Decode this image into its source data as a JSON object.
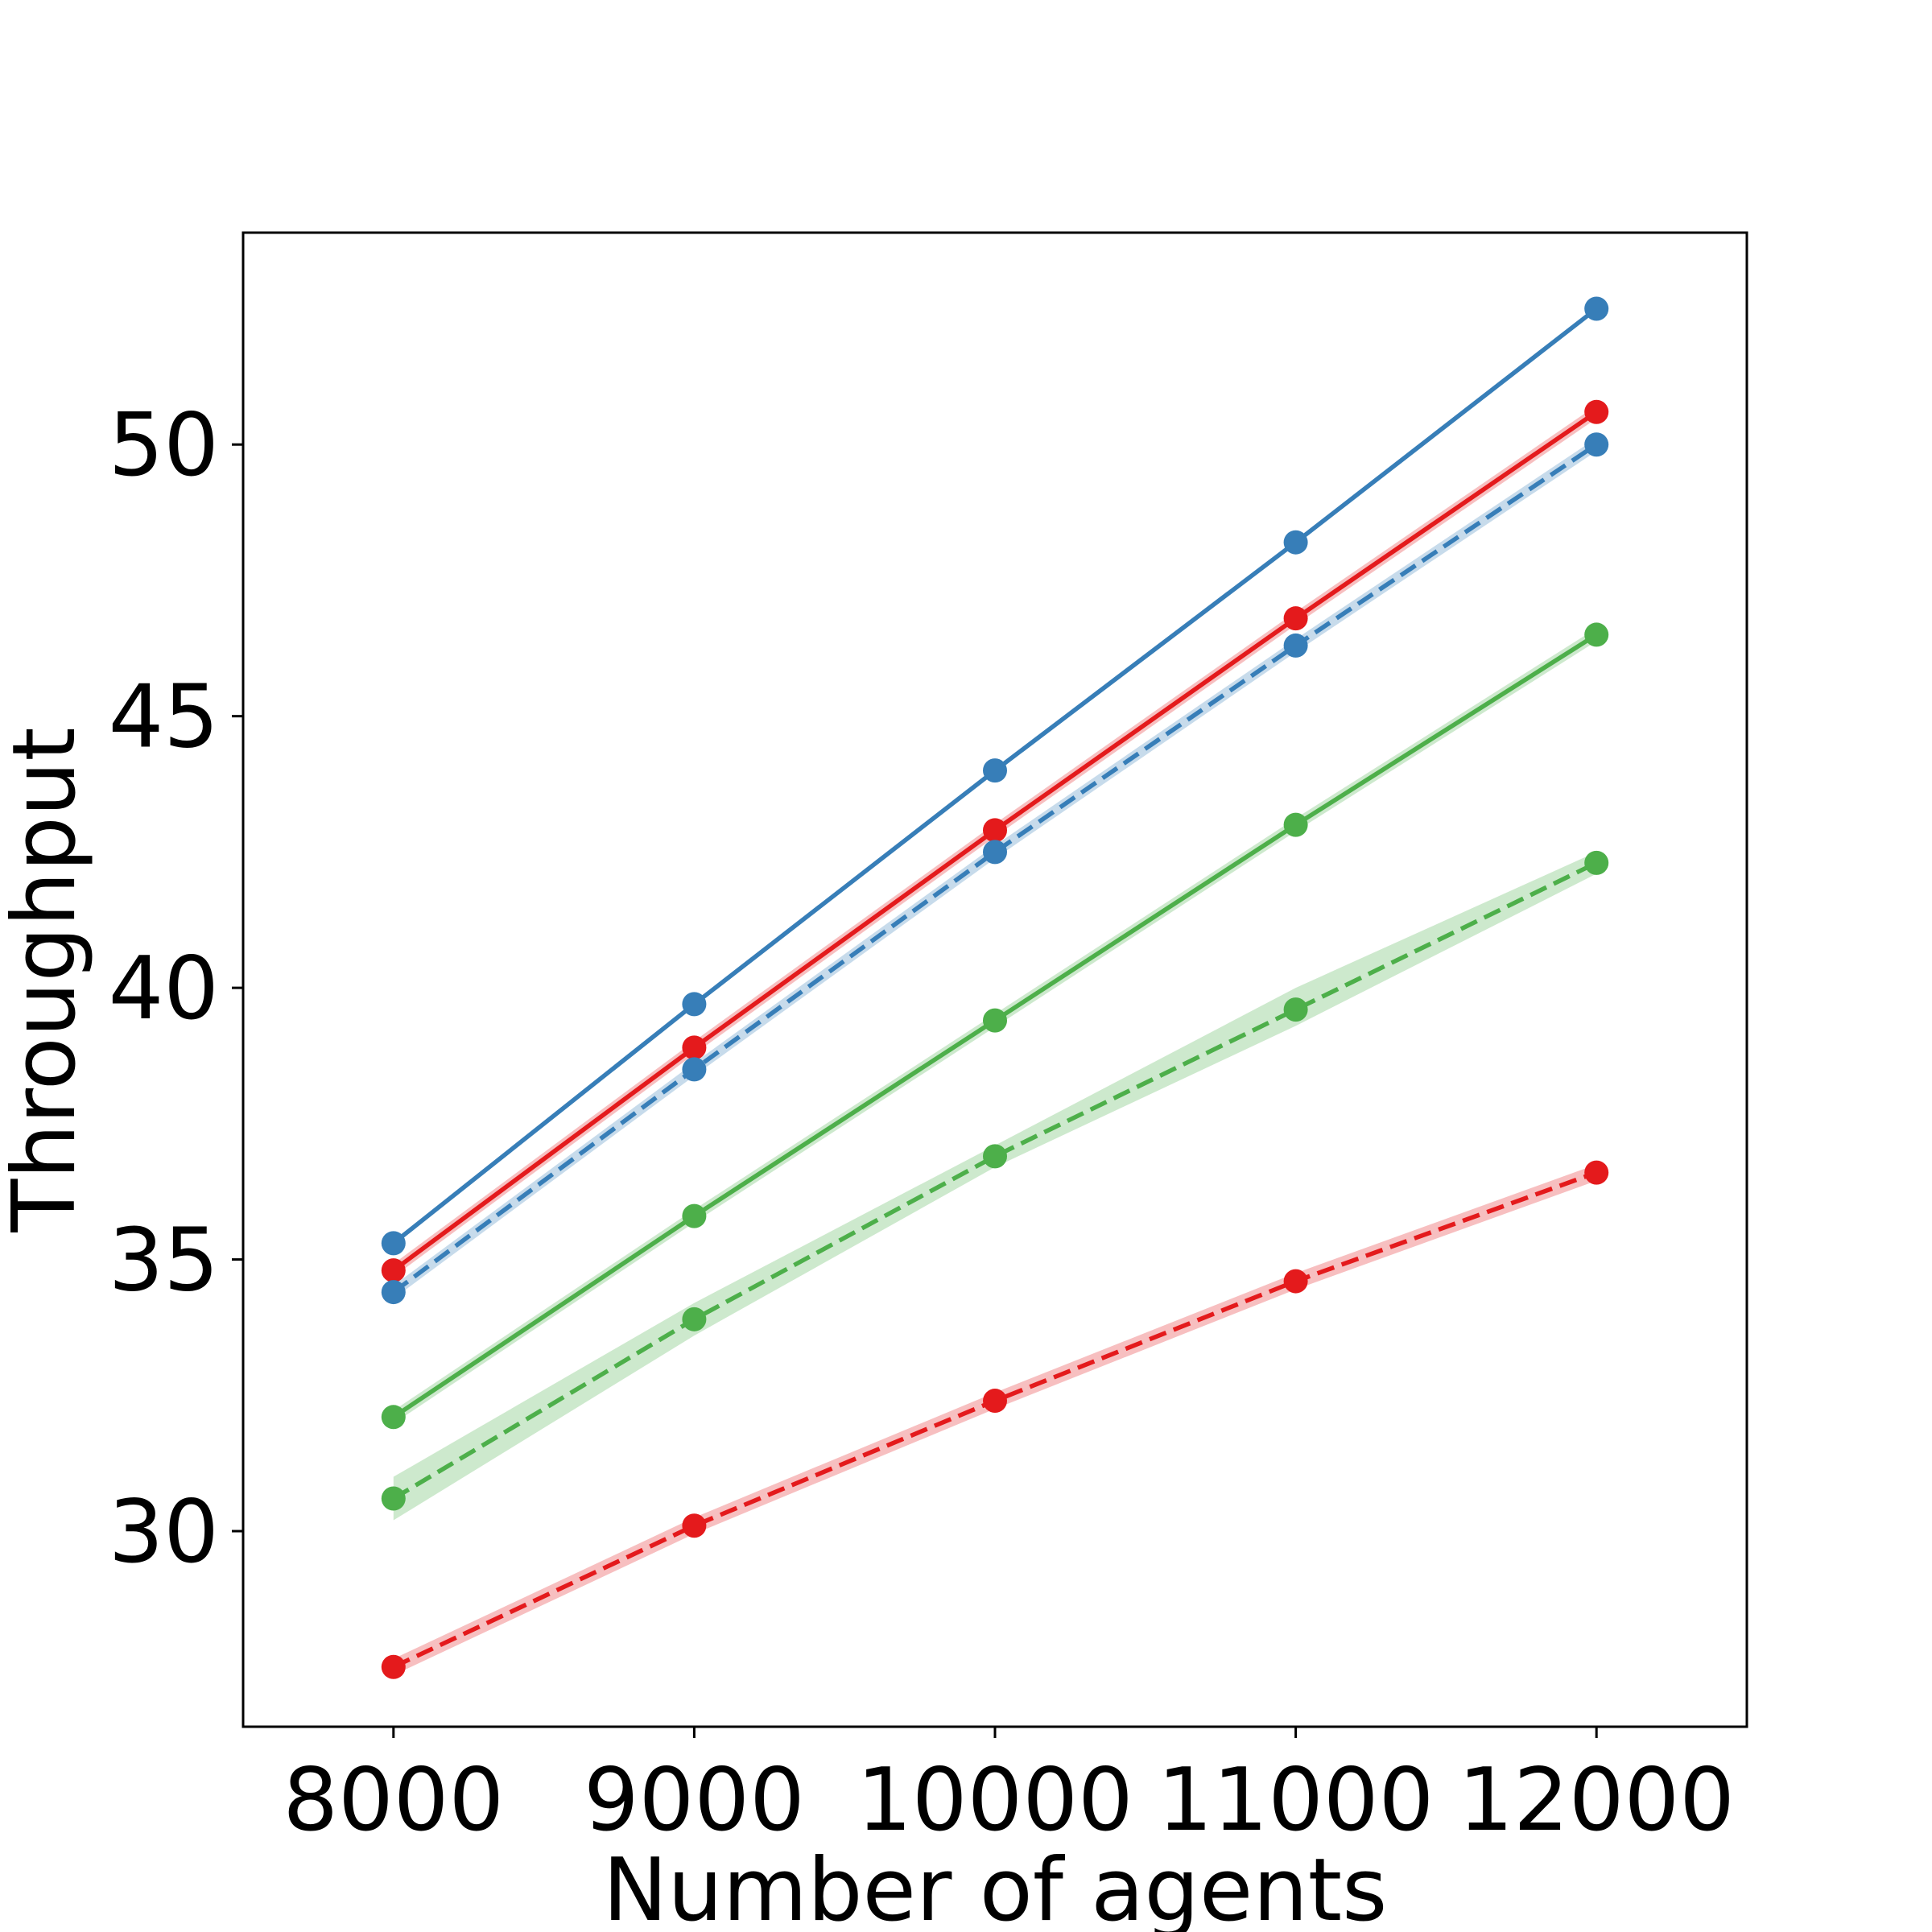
{
  "chart_data": {
    "type": "line",
    "xlabel": "Number of agents",
    "ylabel": "Throughput",
    "x": [
      8000,
      9000,
      10000,
      11000,
      12000
    ],
    "xlim": [
      7500,
      12500
    ],
    "ylim": [
      26.4,
      53.9
    ],
    "xticks": [
      8000,
      9000,
      10000,
      11000,
      12000
    ],
    "yticks": [
      30,
      35,
      40,
      45,
      50
    ],
    "grid": false,
    "series": [
      {
        "color": "#377eb8",
        "dash": "solid",
        "values": [
          35.3,
          39.7,
          44.0,
          48.2,
          52.5
        ],
        "band": 0.0
      },
      {
        "color": "#e41a1c",
        "dash": "solid",
        "values": [
          34.8,
          38.9,
          42.9,
          46.8,
          50.6
        ],
        "band": 0.12
      },
      {
        "color": "#377eb8",
        "dash": "dashed",
        "values": [
          34.4,
          38.5,
          42.5,
          46.3,
          50.0
        ],
        "band": 0.12
      },
      {
        "color": "#4daf4a",
        "dash": "solid",
        "values": [
          32.1,
          35.8,
          39.4,
          43.0,
          46.5
        ],
        "band": 0.12
      },
      {
        "color": "#4daf4a",
        "dash": "dashed",
        "values": [
          30.6,
          33.9,
          36.9,
          39.6,
          42.3
        ],
        "band_low": [
          30.2,
          33.6,
          36.7,
          39.3,
          42.1
        ],
        "band_high": [
          31.0,
          34.2,
          37.1,
          40.0,
          42.5
        ]
      },
      {
        "color": "#e41a1c",
        "dash": "dashed",
        "values": [
          27.5,
          30.1,
          32.4,
          34.6,
          36.6
        ],
        "band": 0.15
      }
    ]
  }
}
